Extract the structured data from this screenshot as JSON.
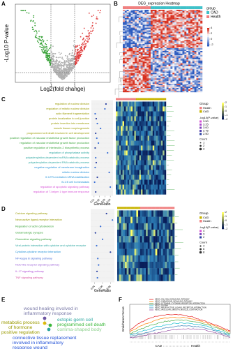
{
  "panels": {
    "A": {
      "label": "A",
      "ylabel": "-Log10 P-value",
      "xlabel": "Log2(fold change)",
      "xlim": [
        -4,
        4
      ],
      "xticks": [
        -1,
        1
      ]
    },
    "B": {
      "label": "B",
      "title": "DEG_expression Heatmap",
      "legend_title": "group",
      "groups": [
        {
          "name": "CAD",
          "color": "#3fc1c9"
        },
        {
          "name": "Health",
          "color": "#f08080"
        }
      ],
      "scale_ticks": [
        4,
        2,
        0,
        -2
      ]
    },
    "C": {
      "label": "C",
      "xlabel": "GeneRatio",
      "xlim": [
        0.005,
        0.045
      ],
      "xticks": [
        0.01,
        0.02,
        0.03,
        0.04
      ],
      "terms": [
        {
          "text": "regulation of nuclear division",
          "color": "#9a9a00",
          "gene_ratio": 0.032
        },
        {
          "text": "regulation of mitotic nuclear division",
          "color": "#9a9a00",
          "gene_ratio": 0.03
        },
        {
          "text": "actin filament fragmentation",
          "color": "#9a9a00",
          "gene_ratio": 0.012
        },
        {
          "text": "protein localization to cell junction",
          "color": "#9a9a00",
          "gene_ratio": 0.014
        },
        {
          "text": "protein insertion into membrane",
          "color": "#9a9a00",
          "gene_ratio": 0.016
        },
        {
          "text": "muscle tissue morphogenesis",
          "color": "#9a9a00",
          "gene_ratio": 0.022
        },
        {
          "text": "programmed cell death involved in cell development",
          "color": "#9a9a00",
          "gene_ratio": 0.013
        },
        {
          "text": "positive regulation of vascular endothelial growth factor production",
          "color": "#3aa33a",
          "gene_ratio": 0.015
        },
        {
          "text": "regulation of vascular endothelial growth factor production",
          "color": "#3aa33a",
          "gene_ratio": 0.018
        },
        {
          "text": "positive regulation of interleukin-2 biosynthetic process",
          "color": "#3aa33a",
          "gene_ratio": 0.012
        },
        {
          "text": "regulation of phosphatase activity",
          "color": "#2aa6a0",
          "gene_ratio": 0.035
        },
        {
          "text": "polyadenylation-dependent ncRNA catabolic process",
          "color": "#2aa6a0",
          "gene_ratio": 0.013
        },
        {
          "text": "polyadenylation-dependent RNA catabolic process",
          "color": "#2aa6a0",
          "gene_ratio": 0.014
        },
        {
          "text": "negative regulation of membrane invagination",
          "color": "#1f8fd6",
          "gene_ratio": 0.012
        },
        {
          "text": "mitotic nuclear division",
          "color": "#1f8fd6",
          "gene_ratio": 0.038
        },
        {
          "text": "3'-UTR-mediated mRNA stabilization",
          "color": "#1f8fd6",
          "gene_ratio": 0.016
        },
        {
          "text": "B-1 B cell homeostasis",
          "color": "#1f8fd6",
          "gene_ratio": 0.011
        },
        {
          "text": "regulation of apoptotic signaling pathway",
          "color": "#d64fd6",
          "gene_ratio": 0.04
        },
        {
          "text": "regulation of T-helper 1 type immune response",
          "color": "#d64fd6",
          "gene_ratio": 0.013
        }
      ],
      "group_title": "Group",
      "groups": [
        {
          "name": "Health",
          "color": "#f08080"
        },
        {
          "name": "CAD",
          "color": "#c8b400"
        }
      ],
      "pvalue_title": "-log10(P-value)",
      "pvalue_ticks": [
        {
          "value": 3.5,
          "label": "3.50"
        },
        {
          "value": 3.25,
          "label": "3.25"
        },
        {
          "value": 3,
          "label": "3.00"
        },
        {
          "value": 2.75,
          "label": "2.75"
        },
        {
          "value": 2.5,
          "label": "2.50"
        }
      ],
      "count_title": "Count",
      "count_ticks": [
        1,
        2,
        3
      ],
      "scale_ticks": [
        2,
        1,
        0,
        -1,
        -2
      ]
    },
    "D": {
      "label": "D",
      "xlabel": "GeneRatio",
      "xlim": [
        0.03,
        0.09
      ],
      "xticks": [
        0.04,
        0.06,
        0.08
      ],
      "terms": [
        {
          "text": "Calcium signaling pathway",
          "color": "#9a9a00",
          "gene_ratio": 0.07
        },
        {
          "text": "Neuroactive ligand-receptor interaction",
          "color": "#9a9a00",
          "gene_ratio": 0.085
        },
        {
          "text": "Regulation of actin cytoskeleton",
          "color": "#3aa33a",
          "gene_ratio": 0.055
        },
        {
          "text": "Glutamatergic synapse",
          "color": "#3aa33a",
          "gene_ratio": 0.042
        },
        {
          "text": "Chemokine signaling pathway",
          "color": "#3aa33a",
          "gene_ratio": 0.06
        },
        {
          "text": "Viral protein interaction with cytokine and cytokine receptor",
          "color": "#2aa6a0",
          "gene_ratio": 0.045
        },
        {
          "text": "Cytokine-cytokine receptor interaction",
          "color": "#1f8fd6",
          "gene_ratio": 0.08
        },
        {
          "text": "NF-kappa B signaling pathway",
          "color": "#4a6fd6",
          "gene_ratio": 0.048
        },
        {
          "text": "NOD-like receptor signaling pathway",
          "color": "#9a5fd6",
          "gene_ratio": 0.05
        },
        {
          "text": "IL-17 signaling pathway",
          "color": "#b04fd6",
          "gene_ratio": 0.046
        },
        {
          "text": "TNF signaling pathway",
          "color": "#d64fa0",
          "gene_ratio": 0.047
        }
      ],
      "group_title": "Group",
      "groups": [
        {
          "name": "CAD",
          "color": "#c8b400"
        },
        {
          "name": "Health",
          "color": "#f08080"
        }
      ],
      "pvalue_title": "-log10(P-value)",
      "pvalue_ticks": [
        4,
        3,
        2
      ],
      "count_title": "Count",
      "count_ticks": [
        4,
        6,
        8
      ],
      "scale_ticks": [
        2,
        1,
        0,
        -1,
        -2
      ]
    },
    "E": {
      "label": "E",
      "words": [
        {
          "text": "wound healing involved in",
          "color": "#7a7aa8"
        },
        {
          "text": "inflammatory response",
          "color": "#7a7aa8"
        },
        {
          "text": "metabolic process",
          "color": "#9a9a00"
        },
        {
          "text": "of hormone",
          "color": "#9a9a00"
        },
        {
          "text": "positive regulation",
          "color": "#9a9a00"
        },
        {
          "text": "ectopic germ cell",
          "color": "#2aa6a0"
        },
        {
          "text": "programmed cell death",
          "color": "#3ab83a"
        },
        {
          "text": "comma-shaped body",
          "color": "#8fd18f"
        },
        {
          "text": "connective tissue replacement",
          "color": "#1f4fd6"
        },
        {
          "text": "involved in inflammatory",
          "color": "#1f4fd6"
        },
        {
          "text": "response wound",
          "color": "#1f4fd6"
        }
      ]
    },
    "F": {
      "label": "F",
      "ylabel": "Enrichment Score",
      "xlabel_left": "CAD",
      "xlabel_right": "Health",
      "pathways": [
        {
          "name": "KEGG_CALCIUM_SIGNALING_PATHWAY",
          "color": "#e41a1c"
        },
        {
          "name": "KEGG_CHEMOKINE_SIGNALING_PATHWAY",
          "color": "#ff7f00"
        },
        {
          "name": "KEGG_CYTOKINE_CYTOKINE_RECEPTOR_INTERACTION",
          "color": "#4daf4a"
        },
        {
          "name": "KEGG_GLIOMA",
          "color": "#17becf"
        },
        {
          "name": "KEGG_NEUROACTIVE_LIGAND_RECEPTOR_INTERACTION",
          "color": "#377eb8"
        },
        {
          "name": "KEGG_VASCULAR_SMOOTH_MUSCLE_CONTRACTION",
          "color": "#984ea3"
        }
      ]
    }
  }
}
